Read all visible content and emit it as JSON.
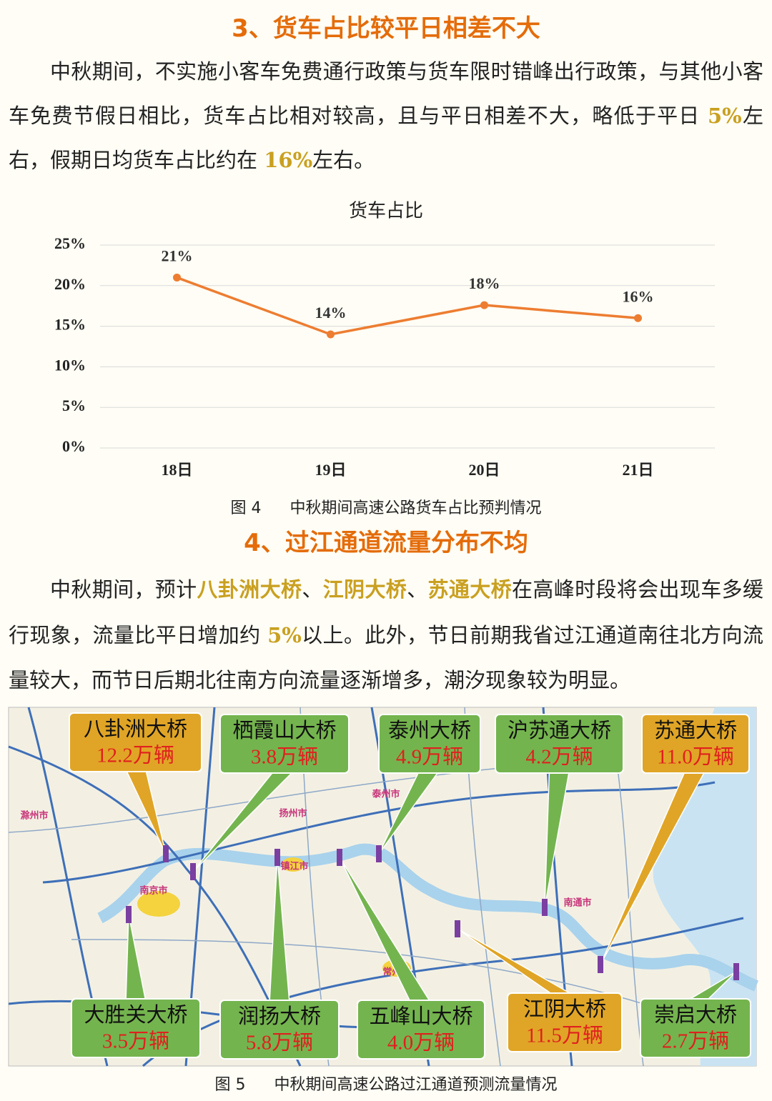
{
  "section3": {
    "heading": "3、货车占比较平日相差不大",
    "segments": [
      {
        "text": "中秋期间，不实施小客车免费通行政策与货车限时错峰出行政策，与其他小客车免费节假日相比，货车占比相对较高，且与平日相差不大，略低于平日 "
      },
      {
        "text": "5%",
        "emphasis": true
      },
      {
        "text": "左右，假期日均货车占比约在 "
      },
      {
        "text": "16%",
        "emphasis": true
      },
      {
        "text": "左右。"
      }
    ]
  },
  "chart_data": {
    "type": "line",
    "title": "货车占比",
    "categories": [
      "18日",
      "19日",
      "20日",
      "21日"
    ],
    "values": [
      21,
      14,
      17.6,
      16
    ],
    "value_labels": [
      "21%",
      "14%",
      "18%",
      "16%"
    ],
    "color": "#ED7D31",
    "ylim": [
      0,
      25
    ],
    "yticks": [
      {
        "value": 0,
        "label": "0%"
      },
      {
        "value": 5,
        "label": "5%"
      },
      {
        "value": 10,
        "label": "10%"
      },
      {
        "value": 15,
        "label": "15%"
      },
      {
        "value": 20,
        "label": "20%"
      },
      {
        "value": 25,
        "label": "25%"
      }
    ],
    "grid": true
  },
  "figure4": {
    "number": "图 4",
    "caption": "中秋期间高速公路货车占比预判情况"
  },
  "section4": {
    "heading": "4、过江通道流量分布不均",
    "segments": [
      {
        "text": "中秋期间，预计"
      },
      {
        "text": "八卦洲大桥",
        "emphasis": true
      },
      {
        "text": "、"
      },
      {
        "text": "江阴大桥",
        "emphasis": true
      },
      {
        "text": "、"
      },
      {
        "text": "苏通大桥",
        "emphasis": true
      },
      {
        "text": "在高峰时段将会出现车多缓行现象，流量比平日增加约 "
      },
      {
        "text": "5%",
        "emphasis": true
      },
      {
        "text": "以上。此外，节日前期我省过江通道南往北方向流量较大，而节日后期北往南方向流量逐渐增多，潮汐现象较为明显。"
      }
    ]
  },
  "map": {
    "cities": [
      "滁州市",
      "南京市",
      "扬州市",
      "镇江市",
      "泰州市",
      "常州市",
      "南通市"
    ],
    "bridges": [
      {
        "name": "八卦洲大桥",
        "flow": "12.2万辆",
        "color": "#E0A526"
      },
      {
        "name": "栖霞山大桥",
        "flow": "3.8万辆",
        "color": "#74B44E"
      },
      {
        "name": "泰州大桥",
        "flow": "4.9万辆",
        "color": "#74B44E"
      },
      {
        "name": "沪苏通大桥",
        "flow": "4.2万辆",
        "color": "#74B44E"
      },
      {
        "name": "苏通大桥",
        "flow": "11.0万辆",
        "color": "#E0A526"
      },
      {
        "name": "大胜关大桥",
        "flow": "3.5万辆",
        "color": "#74B44E"
      },
      {
        "name": "润扬大桥",
        "flow": "5.8万辆",
        "color": "#74B44E"
      },
      {
        "name": "五峰山大桥",
        "flow": "4.0万辆",
        "color": "#74B44E"
      },
      {
        "name": "江阴大桥",
        "flow": "11.5万辆",
        "color": "#E0A526"
      },
      {
        "name": "崇启大桥",
        "flow": "2.7万辆",
        "color": "#74B44E"
      }
    ]
  },
  "figure5": {
    "number": "图 5",
    "caption": "中秋期间高速公路过江通道预测流量情况"
  }
}
